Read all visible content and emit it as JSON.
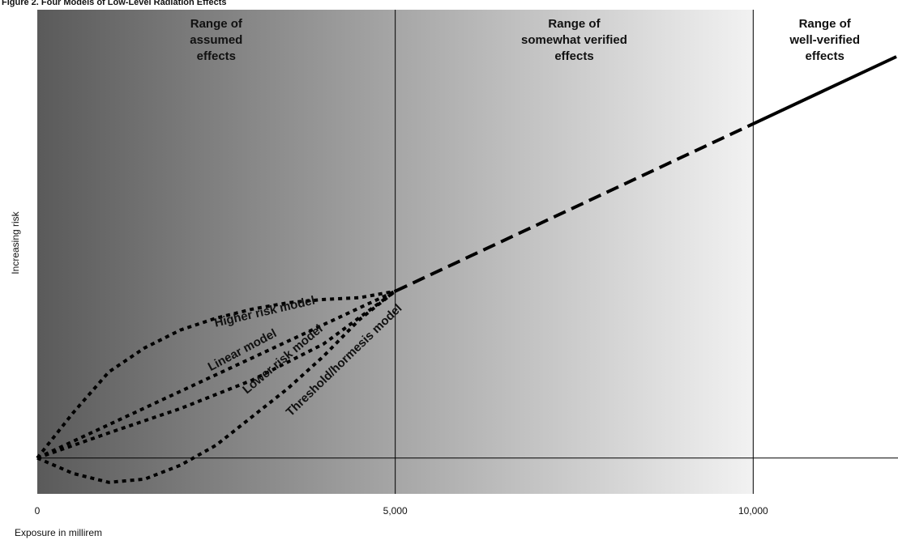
{
  "chart_data": {
    "type": "line",
    "title": "Figure 2. Four Models of Low-Level Radiation Effects",
    "x_label": "Exposure in millirem",
    "y_label": "Increasing risk",
    "xlim": [
      0,
      12000
    ],
    "ylim": [
      -1,
      12.5
    ],
    "xticks": [
      0,
      {
        "value": 5000,
        "label": "5,000"
      },
      {
        "value": 10000,
        "label": "10,000"
      }
    ],
    "grid": true,
    "regions": [
      {
        "label": [
          "Range of",
          "assumed",
          "effects"
        ],
        "xrange": [
          0,
          5000
        ]
      },
      {
        "label": [
          "Range of",
          "somewhat verified",
          "effects"
        ],
        "xrange": [
          5000,
          10000
        ]
      },
      {
        "label": [
          "Range of",
          "well-verified",
          "effects"
        ],
        "xrange": [
          10000,
          12000
        ]
      }
    ],
    "shade": {
      "xrange": [
        0,
        10000
      ],
      "colors": [
        "#5a5a5a",
        "#f2f2f2"
      ]
    },
    "series": [
      {
        "name": "Higher risk model",
        "color": "#000",
        "style": "dotted",
        "x": [
          0,
          500,
          1000,
          1500,
          2000,
          2500,
          3000,
          3500,
          4000,
          4500,
          5000
        ],
        "values": [
          0,
          1.26,
          2.4,
          3.07,
          3.57,
          3.9,
          4.15,
          4.33,
          4.42,
          4.47,
          4.65
        ]
      },
      {
        "name": "Linear model",
        "color": "#000",
        "style": "dotted",
        "x": [
          0,
          5000
        ],
        "values": [
          0,
          4.65
        ]
      },
      {
        "name": "Lower risk model",
        "color": "#000",
        "style": "dotted",
        "x": [
          0,
          1000,
          2000,
          3000,
          4000,
          5000
        ],
        "values": [
          0,
          0.7,
          1.38,
          2.17,
          3.18,
          4.65
        ]
      },
      {
        "name": "Threshold/hormesis model",
        "color": "#000",
        "style": "dotted",
        "x": [
          0,
          500,
          1000,
          1500,
          2000,
          2500,
          3000,
          3500,
          4000,
          4500,
          5000
        ],
        "values": [
          0,
          -0.43,
          -0.68,
          -0.59,
          -0.2,
          0.36,
          1.15,
          1.94,
          2.84,
          3.86,
          4.65
        ]
      },
      {
        "color": "#000",
        "style": "dashed",
        "x": [
          5000,
          10000
        ],
        "values": [
          4.65,
          9.32
        ]
      },
      {
        "color": "#000",
        "style": "solid",
        "x": [
          10000,
          12000
        ],
        "values": [
          9.32,
          11.19
        ]
      }
    ]
  }
}
